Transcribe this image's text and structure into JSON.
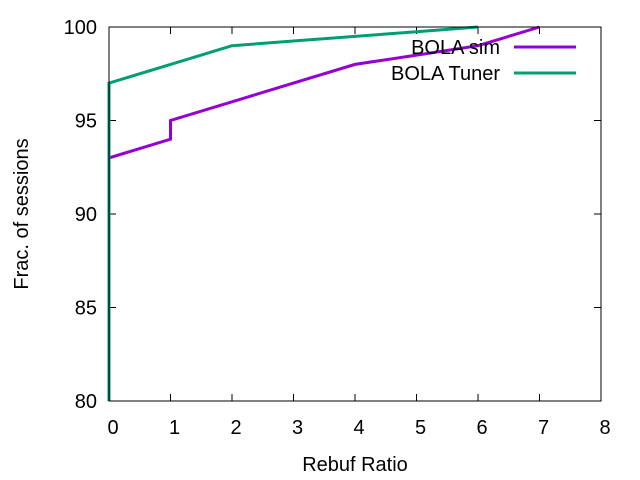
{
  "chart_data": {
    "type": "line",
    "xlabel": "Rebuf Ratio",
    "ylabel": "Frac. of sessions",
    "xlim": [
      0,
      8
    ],
    "ylim": [
      80,
      100
    ],
    "xticks": [
      0,
      1,
      2,
      3,
      4,
      5,
      6,
      7,
      8
    ],
    "yticks": [
      80,
      85,
      90,
      95,
      100
    ],
    "grid": false,
    "legend_position": "top-right",
    "series": [
      {
        "name": "BOLA sim",
        "color": "#9400d3",
        "points": [
          [
            0,
            80
          ],
          [
            0,
            93
          ],
          [
            1,
            94
          ],
          [
            1,
            95
          ],
          [
            2,
            96
          ],
          [
            3,
            97
          ],
          [
            4,
            98
          ],
          [
            5,
            98.5
          ],
          [
            6,
            99
          ],
          [
            7,
            100
          ]
        ]
      },
      {
        "name": "BOLA Tuner",
        "color": "#009e73",
        "points": [
          [
            0,
            80
          ],
          [
            0,
            97
          ],
          [
            1,
            98
          ],
          [
            2,
            99
          ],
          [
            3,
            99.25
          ],
          [
            4,
            99.5
          ],
          [
            5,
            99.75
          ],
          [
            6,
            100
          ]
        ]
      }
    ]
  }
}
